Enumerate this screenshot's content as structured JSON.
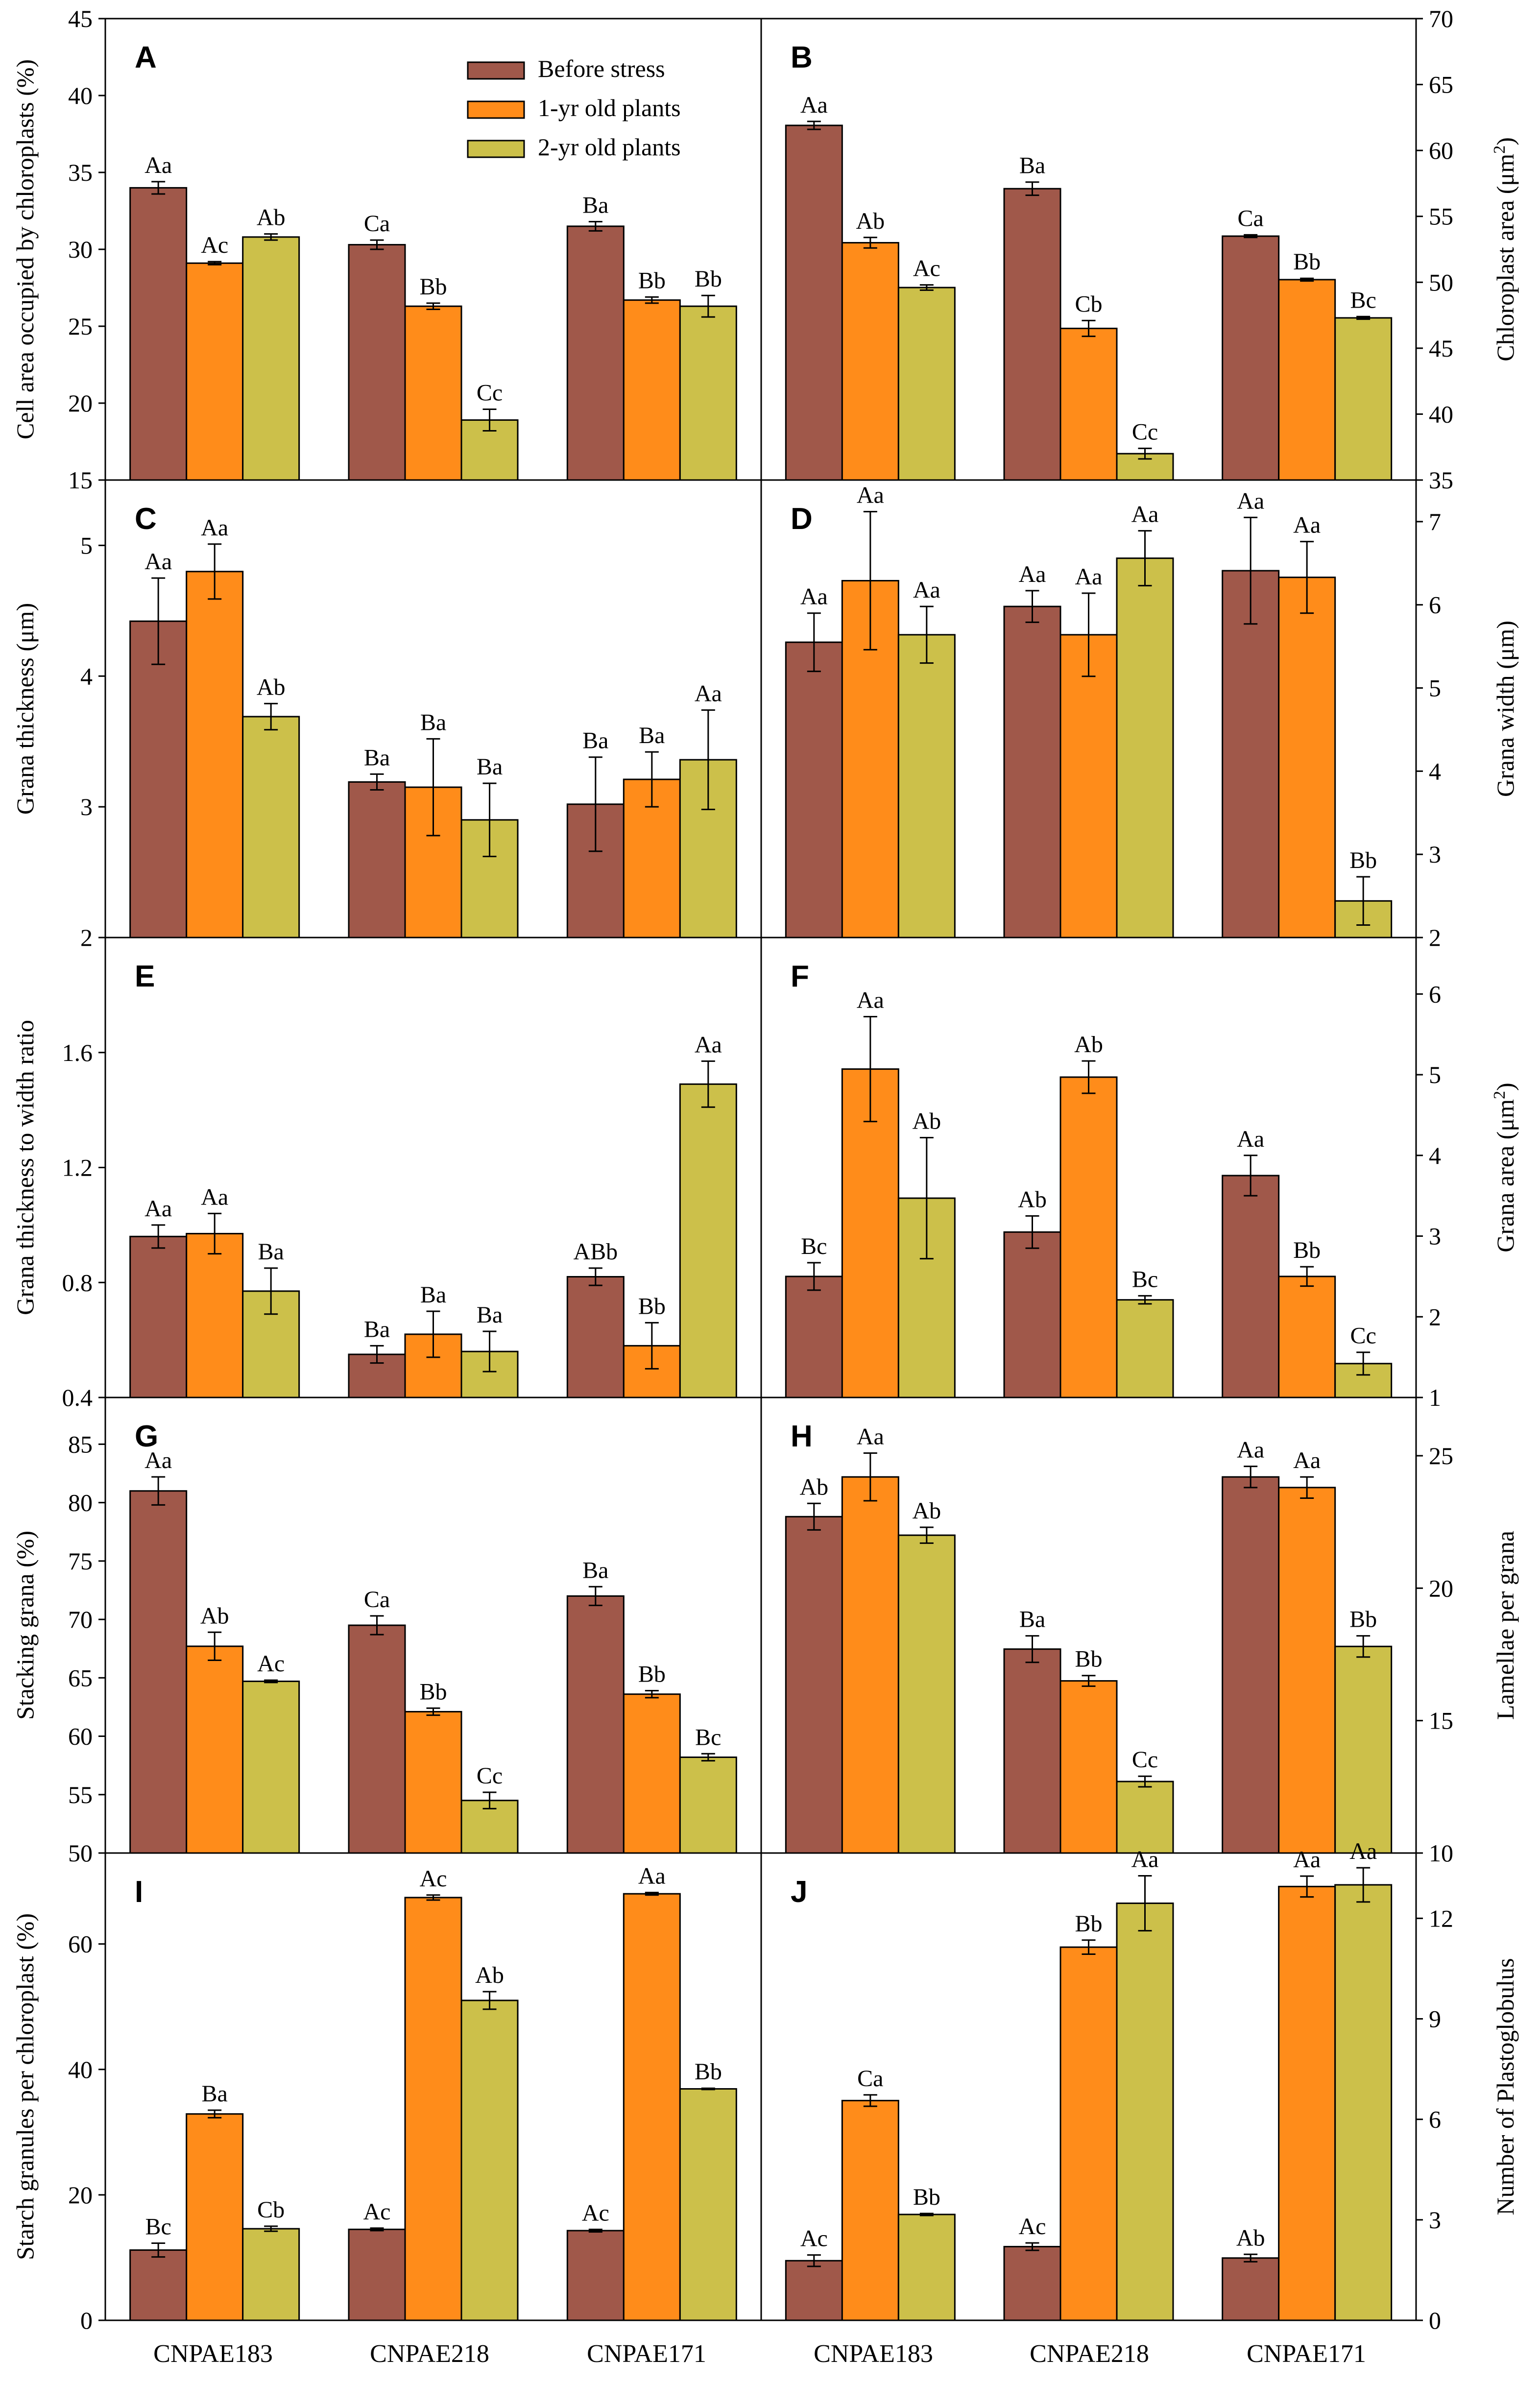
{
  "colors": {
    "s0": "#A0584A",
    "s1": "#FF8C1A",
    "s2": "#CCC04A"
  },
  "legend": [
    "Before stress",
    "1-yr old plants",
    "2-yr old plants"
  ],
  "x_categories": [
    "CNPAE183",
    "CNPAE218",
    "CNPAE171"
  ],
  "chart_data": [
    {
      "panel": "A",
      "type": "bar",
      "ylabel": "Cell area occupied by chloroplasts (%)",
      "ylim": [
        15,
        45
      ],
      "ticks": [
        15,
        20,
        25,
        30,
        35,
        40,
        45
      ],
      "categories": [
        "CNPAE183",
        "CNPAE218",
        "CNPAE171"
      ],
      "series": [
        {
          "name": "Before stress",
          "values": [
            34.0,
            30.3,
            31.5
          ],
          "err": [
            0.4,
            0.3,
            0.3
          ],
          "labels": [
            "Aa",
            "Ca",
            "Ba"
          ]
        },
        {
          "name": "1-yr old plants",
          "values": [
            29.1,
            26.3,
            26.7
          ],
          "err": [
            0.1,
            0.2,
            0.2
          ],
          "labels": [
            "Ac",
            "Bb",
            "Bb"
          ]
        },
        {
          "name": "2-yr old plants",
          "values": [
            30.8,
            18.9,
            26.3
          ],
          "err": [
            0.2,
            0.7,
            0.7
          ],
          "labels": [
            "Ab",
            "Cc",
            "Bb"
          ]
        }
      ]
    },
    {
      "panel": "B",
      "type": "bar",
      "ylabel": "Chloroplast area (μm²)",
      "ylim": [
        35,
        70
      ],
      "ticks": [
        35,
        40,
        45,
        50,
        55,
        60,
        65,
        70
      ],
      "categories": [
        "CNPAE183",
        "CNPAE218",
        "CNPAE171"
      ],
      "series": [
        {
          "name": "Before stress",
          "values": [
            61.9,
            57.1,
            53.5
          ],
          "err": [
            0.3,
            0.5,
            0.1
          ],
          "labels": [
            "Aa",
            "Ba",
            "Ca"
          ]
        },
        {
          "name": "1-yr old plants",
          "values": [
            53.0,
            46.5,
            50.2
          ],
          "err": [
            0.4,
            0.6,
            0.1
          ],
          "labels": [
            "Ab",
            "Cb",
            "Bb"
          ]
        },
        {
          "name": "2-yr old plants",
          "values": [
            49.6,
            37.0,
            47.3
          ],
          "err": [
            0.2,
            0.4,
            0.1
          ],
          "labels": [
            "Ac",
            "Cc",
            "Bc"
          ]
        }
      ]
    },
    {
      "panel": "C",
      "type": "bar",
      "ylabel": "Grana thickness (μm)",
      "ylim": [
        2,
        5.5
      ],
      "ticks": [
        2,
        3,
        4,
        5
      ],
      "categories": [
        "CNPAE183",
        "CNPAE218",
        "CNPAE171"
      ],
      "series": [
        {
          "name": "Before stress",
          "values": [
            4.42,
            3.19,
            3.02
          ],
          "err": [
            0.33,
            0.06,
            0.36
          ],
          "labels": [
            "Aa",
            "Ba",
            "Ba"
          ]
        },
        {
          "name": "1-yr old plants",
          "values": [
            4.8,
            3.15,
            3.21
          ],
          "err": [
            0.21,
            0.37,
            0.21
          ],
          "labels": [
            "Aa",
            "Ba",
            "Ba"
          ]
        },
        {
          "name": "2-yr old plants",
          "values": [
            3.69,
            2.9,
            3.36
          ],
          "err": [
            0.1,
            0.28,
            0.38
          ],
          "labels": [
            "Ab",
            "Ba",
            "Aa"
          ]
        }
      ]
    },
    {
      "panel": "D",
      "type": "bar",
      "ylabel": "Grana width (μm)",
      "ylim": [
        2,
        7.5
      ],
      "ticks": [
        2,
        3,
        4,
        5,
        6,
        7
      ],
      "categories": [
        "CNPAE183",
        "CNPAE218",
        "CNPAE171"
      ],
      "series": [
        {
          "name": "Before stress",
          "values": [
            5.55,
            5.98,
            6.41
          ],
          "err": [
            0.35,
            0.19,
            0.64
          ],
          "labels": [
            "Aa",
            "Aa",
            "Aa"
          ]
        },
        {
          "name": "1-yr old plants",
          "values": [
            6.29,
            5.64,
            6.33
          ],
          "err": [
            0.83,
            0.5,
            0.43
          ],
          "labels": [
            "Aa",
            "Aa",
            "Aa"
          ]
        },
        {
          "name": "2-yr old plants",
          "values": [
            5.64,
            6.56,
            2.44
          ],
          "err": [
            0.34,
            0.33,
            0.29
          ],
          "labels": [
            "Aa",
            "Aa",
            "Bb"
          ]
        }
      ]
    },
    {
      "panel": "E",
      "type": "bar",
      "ylabel": "Grana thickness to width ratio",
      "ylim": [
        0.4,
        2.0
      ],
      "ticks": [
        0.4,
        0.8,
        1.2,
        1.6
      ],
      "categories": [
        "CNPAE183",
        "CNPAE218",
        "CNPAE171"
      ],
      "series": [
        {
          "name": "Before stress",
          "values": [
            0.96,
            0.55,
            0.82
          ],
          "err": [
            0.04,
            0.03,
            0.03
          ],
          "labels": [
            "Aa",
            "Ba",
            "ABb"
          ]
        },
        {
          "name": "1-yr old plants",
          "values": [
            0.97,
            0.62,
            0.58
          ],
          "err": [
            0.07,
            0.08,
            0.08
          ],
          "labels": [
            "Aa",
            "Ba",
            "Bb"
          ]
        },
        {
          "name": "2-yr old plants",
          "values": [
            0.77,
            0.56,
            1.49
          ],
          "err": [
            0.08,
            0.07,
            0.08
          ],
          "labels": [
            "Ba",
            "Ba",
            "Aa"
          ]
        }
      ]
    },
    {
      "panel": "F",
      "type": "bar",
      "ylabel": "Grana area (μm²)",
      "ylim": [
        1,
        6.7
      ],
      "ticks": [
        1,
        2,
        3,
        4,
        5,
        6
      ],
      "categories": [
        "CNPAE183",
        "CNPAE218",
        "CNPAE171"
      ],
      "series": [
        {
          "name": "Before stress",
          "values": [
            2.5,
            3.05,
            3.75
          ],
          "err": [
            0.17,
            0.2,
            0.25
          ],
          "labels": [
            "Bc",
            "Ab",
            "Aa"
          ]
        },
        {
          "name": "1-yr old plants",
          "values": [
            5.07,
            4.97,
            2.5
          ],
          "err": [
            0.65,
            0.2,
            0.12
          ],
          "labels": [
            "Aa",
            "Ab",
            "Bb"
          ]
        },
        {
          "name": "2-yr old plants",
          "values": [
            3.47,
            2.21,
            1.42
          ],
          "err": [
            0.75,
            0.05,
            0.14
          ],
          "labels": [
            "Ab",
            "Bc",
            "Cc"
          ]
        }
      ]
    },
    {
      "panel": "G",
      "type": "bar",
      "ylabel": "Stacking grana (%)",
      "ylim": [
        50,
        89
      ],
      "ticks": [
        50,
        55,
        60,
        65,
        70,
        75,
        80,
        85
      ],
      "categories": [
        "CNPAE183",
        "CNPAE218",
        "CNPAE171"
      ],
      "series": [
        {
          "name": "Before stress",
          "values": [
            81.0,
            69.5,
            72.0
          ],
          "err": [
            1.2,
            0.8,
            0.8
          ],
          "labels": [
            "Aa",
            "Ca",
            "Ba"
          ]
        },
        {
          "name": "1-yr old plants",
          "values": [
            67.7,
            62.1,
            63.6
          ],
          "err": [
            1.2,
            0.3,
            0.3
          ],
          "labels": [
            "Ab",
            "Bb",
            "Bb"
          ]
        },
        {
          "name": "2-yr old plants",
          "values": [
            64.7,
            54.5,
            58.2
          ],
          "err": [
            0.1,
            0.7,
            0.3
          ],
          "labels": [
            "Ac",
            "Cc",
            "Bc"
          ]
        }
      ]
    },
    {
      "panel": "H",
      "type": "bar",
      "ylabel": "Lamellae per grana",
      "ylim": [
        10,
        27.2
      ],
      "ticks": [
        10,
        15,
        20,
        25
      ],
      "categories": [
        "CNPAE183",
        "CNPAE218",
        "CNPAE171"
      ],
      "series": [
        {
          "name": "Before stress",
          "values": [
            22.7,
            17.7,
            24.2
          ],
          "err": [
            0.5,
            0.5,
            0.4
          ],
          "labels": [
            "Ab",
            "Ba",
            "Aa"
          ]
        },
        {
          "name": "1-yr old plants",
          "values": [
            24.2,
            16.5,
            23.8
          ],
          "err": [
            0.9,
            0.2,
            0.4
          ],
          "labels": [
            "Aa",
            "Bb",
            "Aa"
          ]
        },
        {
          "name": "2-yr old plants",
          "values": [
            22.0,
            12.7,
            17.8
          ],
          "err": [
            0.3,
            0.2,
            0.4
          ],
          "labels": [
            "Ab",
            "Cc",
            "Bb"
          ]
        }
      ]
    },
    {
      "panel": "I",
      "type": "bar",
      "ylabel": "Starch granules per chloroplast (%)",
      "ylim": [
        0,
        74.5
      ],
      "ticks": [
        0,
        20,
        40,
        60
      ],
      "categories": [
        "CNPAE183",
        "CNPAE218",
        "CNPAE171"
      ],
      "series": [
        {
          "name": "Before stress",
          "values": [
            11.2,
            14.5,
            14.3
          ],
          "err": [
            1.1,
            0.2,
            0.2
          ],
          "labels": [
            "Bc",
            "Ac",
            "Ac"
          ]
        },
        {
          "name": "1-yr old plants",
          "values": [
            32.9,
            67.4,
            68.0
          ],
          "err": [
            0.6,
            0.4,
            0.2
          ],
          "labels": [
            "Ba",
            "Ac",
            "Aa"
          ]
        },
        {
          "name": "2-yr old plants",
          "values": [
            14.6,
            51.0,
            36.9
          ],
          "err": [
            0.4,
            1.4,
            0.1
          ],
          "labels": [
            "Cb",
            "Ab",
            "Bb"
          ]
        }
      ]
    },
    {
      "panel": "J",
      "type": "bar",
      "ylabel": "Number of Plastoglobulus",
      "ylim": [
        0,
        13.95
      ],
      "ticks": [
        0,
        3,
        6,
        9,
        12
      ],
      "categories": [
        "CNPAE183",
        "CNPAE218",
        "CNPAE171"
      ],
      "series": [
        {
          "name": "Before stress",
          "values": [
            1.78,
            2.2,
            1.86
          ],
          "err": [
            0.17,
            0.11,
            0.11
          ],
          "labels": [
            "Ac",
            "Ac",
            "Ab"
          ]
        },
        {
          "name": "1-yr old plants",
          "values": [
            6.56,
            11.14,
            12.95
          ],
          "err": [
            0.17,
            0.21,
            0.31
          ],
          "labels": [
            "Ca",
            "Bb",
            "Aa"
          ]
        },
        {
          "name": "2-yr old plants",
          "values": [
            3.16,
            12.45,
            13.0
          ],
          "err": [
            0.03,
            0.82,
            0.51
          ],
          "labels": [
            "Bb",
            "Aa",
            "Aa"
          ]
        }
      ]
    }
  ]
}
